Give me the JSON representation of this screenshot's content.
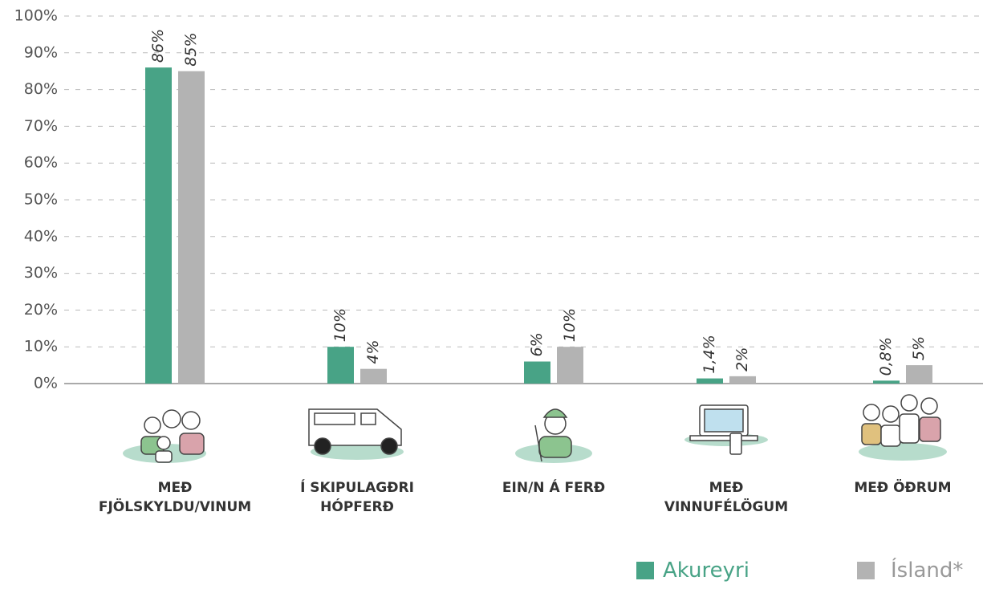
{
  "chart_data": {
    "type": "bar",
    "categories": [
      "MEÐ\nFJÖLSKYLDU/VINUM",
      "Í SKIPULAGÐRI\nHÓPFERÐ",
      "EIN/N Á FERÐ",
      "MEÐ\nVINNUFÉLÖGUM",
      "MEÐ ÖÐRUM"
    ],
    "series": [
      {
        "name": "Akureyri",
        "color": "#48a386",
        "values": [
          86,
          10,
          6,
          1.4,
          0.8
        ],
        "value_labels": [
          "86%",
          "10%",
          "6%",
          "1,4%",
          "0,8%"
        ]
      },
      {
        "name": "Ísland*",
        "color": "#b3b3b3",
        "values": [
          85,
          4,
          10,
          2,
          5
        ],
        "value_labels": [
          "85%",
          "4%",
          "10%",
          "2%",
          "5%"
        ]
      }
    ],
    "ylim": [
      0,
      100
    ],
    "yticks": [
      {
        "value": 0,
        "label": "0%"
      },
      {
        "value": 10,
        "label": "10%"
      },
      {
        "value": 20,
        "label": "20%"
      },
      {
        "value": 30,
        "label": "30%"
      },
      {
        "value": 40,
        "label": "40%"
      },
      {
        "value": 50,
        "label": "50%"
      },
      {
        "value": 60,
        "label": "60%"
      },
      {
        "value": 70,
        "label": "70%"
      },
      {
        "value": 80,
        "label": "80%"
      },
      {
        "value": 90,
        "label": "90%"
      },
      {
        "value": 100,
        "label": "100%"
      }
    ],
    "grid": true
  }
}
